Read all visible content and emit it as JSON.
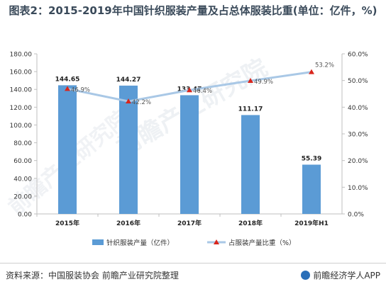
{
  "title": "图表2：2015-2019年中国针织服装产量及占总体服装比重(单位：亿件，%)",
  "watermark": "前瞻产业研究院",
  "footer": {
    "source": "资料来源：中国服装协会 前瞻产业研究院整理",
    "brand": "前瞻经济学人APP"
  },
  "colors": {
    "bar": "#5b9bd5",
    "line": "#a9c8e6",
    "marker": "#d9261c"
  },
  "chart_data": {
    "type": "bar",
    "categories": [
      "2015年",
      "2016年",
      "2017年",
      "2018年",
      "2019年H1"
    ],
    "series": [
      {
        "name": "针织服装产量（亿件）",
        "type": "bar",
        "axis": "left",
        "values": [
          144.65,
          144.27,
          133.47,
          111.17,
          55.39
        ],
        "labels": [
          "144.65",
          "144.27",
          "133.47",
          "111.17",
          "55.39"
        ]
      },
      {
        "name": "占服装产量比重（%）",
        "type": "line",
        "axis": "right",
        "values": [
          46.9,
          42.2,
          46.4,
          49.9,
          53.2
        ],
        "labels": [
          "46.9%",
          "42.2%",
          "46.4%",
          "49.9%",
          "53.2%"
        ]
      }
    ],
    "y_left": {
      "min": 0,
      "max": 180,
      "step": 20,
      "ticks": [
        "0.00",
        "20.00",
        "40.00",
        "60.00",
        "80.00",
        "100.00",
        "120.00",
        "140.00",
        "160.00",
        "180.00"
      ]
    },
    "y_right": {
      "min": 0,
      "max": 60,
      "step": 10,
      "ticks": [
        "0.0%",
        "10.0%",
        "20.0%",
        "30.0%",
        "40.0%",
        "50.0%",
        "60.0%"
      ]
    },
    "legend_position": "bottom",
    "grid": false
  }
}
